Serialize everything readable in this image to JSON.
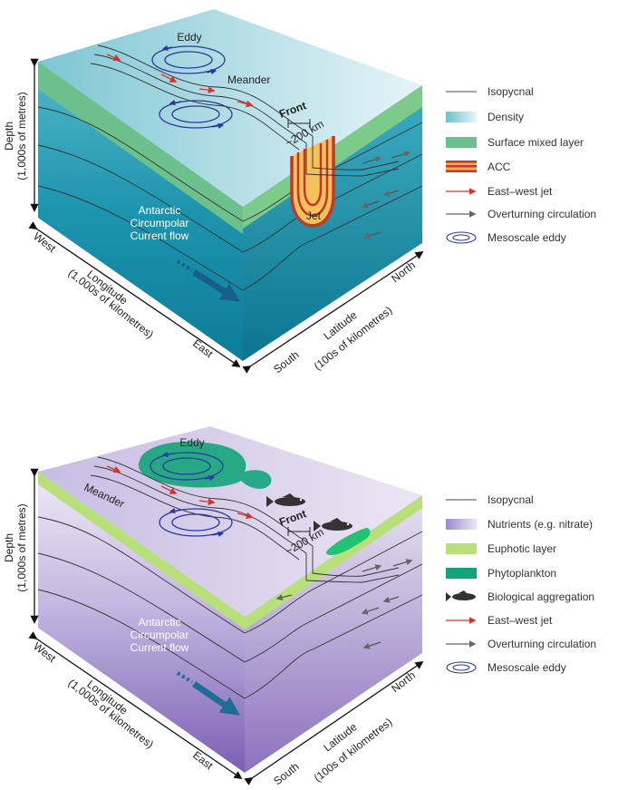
{
  "top_panel": {
    "labels": {
      "eddy": "Eddy",
      "meander": "Meander",
      "front": "Front",
      "front_width": "~200 km",
      "jet": "Jet",
      "current_line1": "Antarctic",
      "current_line2": "Circumpolar",
      "current_line3": "Current flow",
      "depth_line1": "Depth",
      "depth_line2": "(1,000s of metres)",
      "west": "West",
      "east": "East",
      "longitude_line1": "Longitude",
      "longitude_line2": "(1,000s of kilometres)",
      "south": "South",
      "north": "North",
      "latitude_line1": "Latitude",
      "latitude_line2": "(100s of kilometres)"
    },
    "legend": [
      {
        "label": "Isopycnal",
        "icon": "isopycnal-line-icon"
      },
      {
        "label": "Density",
        "icon": "density-gradient-icon"
      },
      {
        "label": "Surface mixed layer",
        "icon": "mixed-layer-icon"
      },
      {
        "label": "ACC",
        "icon": "acc-band-icon"
      },
      {
        "label": "East–west jet",
        "icon": "red-arrow-icon"
      },
      {
        "label": "Overturning circulation",
        "icon": "grey-arrow-icon"
      },
      {
        "label": "Mesoscale eddy",
        "icon": "eddy-icon"
      }
    ]
  },
  "bottom_panel": {
    "labels": {
      "eddy": "Eddy",
      "meander": "Meander",
      "front": "Front",
      "front_width": "~200 km",
      "current_line1": "Antarctic",
      "current_line2": "Circumpolar",
      "current_line3": "Current flow",
      "depth_line1": "Depth",
      "depth_line2": "(1,000s of metres)",
      "west": "West",
      "east": "East",
      "longitude_line1": "Longitude",
      "longitude_line2": "(1,000s of kilometres)",
      "south": "South",
      "north": "North",
      "latitude_line1": "Latitude",
      "latitude_line2": "(100s of kilometres)"
    },
    "legend": [
      {
        "label": "Isopycnal",
        "icon": "isopycnal-line-icon"
      },
      {
        "label": "Nutrients (e.g. nitrate)",
        "icon": "nutrients-gradient-icon"
      },
      {
        "label": "Euphotic layer",
        "icon": "euphotic-layer-icon"
      },
      {
        "label": "Phytoplankton",
        "icon": "phytoplankton-icon"
      },
      {
        "label": "Biological aggregation",
        "icon": "fish-icon"
      },
      {
        "label": "East–west jet",
        "icon": "red-arrow-icon"
      },
      {
        "label": "Overturning circulation",
        "icon": "grey-arrow-icon"
      },
      {
        "label": "Mesoscale eddy",
        "icon": "eddy-icon"
      }
    ]
  }
}
